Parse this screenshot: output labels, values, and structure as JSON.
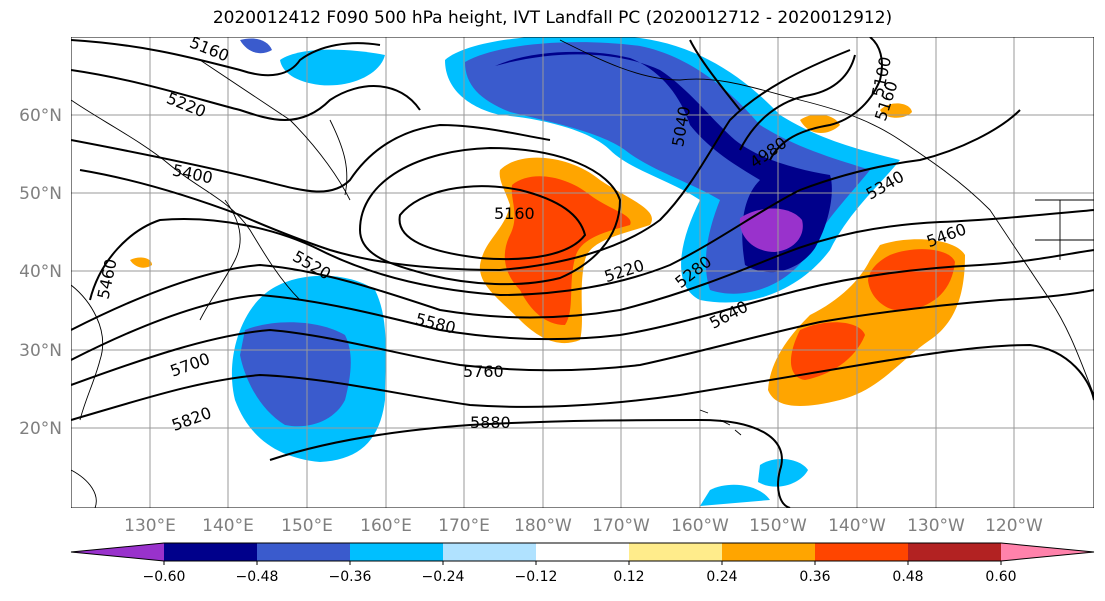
{
  "title": "2020012412 F090 500 hPa height, IVT Landfall PC (2020012712 - 2020012912)",
  "map": {
    "lon_labels": [
      "130°E",
      "140°E",
      "150°E",
      "160°E",
      "170°E",
      "180°W",
      "170°W",
      "160°W",
      "150°W",
      "140°W",
      "130°W",
      "120°W"
    ],
    "lat_labels": [
      "60°N",
      "50°N",
      "40°N",
      "30°N",
      "20°N"
    ],
    "contour_labels": [
      "5160",
      "5220",
      "5400",
      "5520",
      "5460",
      "5580",
      "5700",
      "5760",
      "5820",
      "5880",
      "5160",
      "5220",
      "5280",
      "5340",
      "5460",
      "5640",
      "4980",
      "5100",
      "5160",
      "5040"
    ],
    "grid": true,
    "coastlines": true
  },
  "colorbar": {
    "levels": [
      "−0.60",
      "−0.48",
      "−0.36",
      "−0.24",
      "−0.12",
      "0.12",
      "0.24",
      "0.36",
      "0.48",
      "0.60"
    ],
    "colors": [
      "#9932cc",
      "#00008b",
      "#3a5bcd",
      "#00bfff",
      "#b0e2ff",
      "#ffffff",
      "#ffec8b",
      "#ffa500",
      "#ff4500",
      "#b22222",
      "#ff82ab"
    ],
    "extend": "both"
  }
}
